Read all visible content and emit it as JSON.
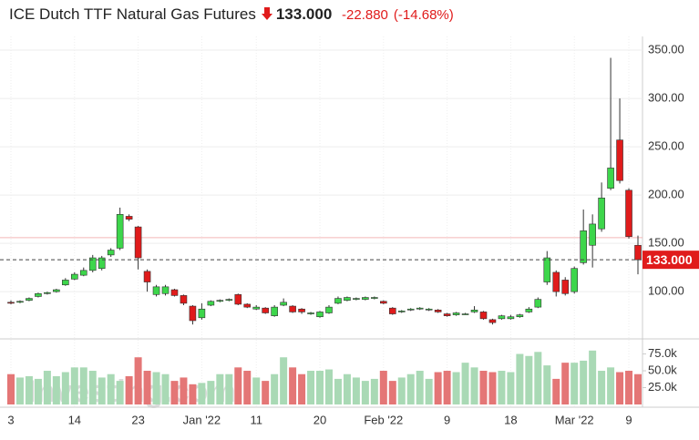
{
  "chart_data": {
    "type": "candlestick",
    "title": "ICE Dutch TTF Natural Gas Futures",
    "price_text": "133.000",
    "change_text": "-22.880",
    "change_pct_text": "(-14.68%)",
    "watermark": "Investing.com",
    "categories": [
      "3",
      null,
      null,
      null,
      null,
      null,
      null,
      "14",
      null,
      null,
      null,
      null,
      null,
      null,
      "23",
      null,
      null,
      null,
      null,
      null,
      null,
      "Jan '22",
      null,
      null,
      null,
      null,
      null,
      "11",
      null,
      null,
      null,
      null,
      null,
      null,
      "20",
      null,
      null,
      null,
      null,
      null,
      null,
      "Feb '22",
      null,
      null,
      null,
      null,
      null,
      null,
      "9",
      null,
      null,
      null,
      null,
      null,
      null,
      "18",
      null,
      null,
      null,
      null,
      null,
      null,
      "Mar '22",
      null,
      null,
      null,
      null,
      null,
      "9",
      null
    ],
    "open": [
      89,
      89,
      91,
      95,
      98,
      100,
      107,
      113,
      117,
      122,
      124,
      138,
      145,
      178,
      167,
      121,
      97,
      98,
      102,
      96,
      85,
      73,
      86,
      90,
      91,
      97,
      87,
      82,
      83,
      75,
      86,
      85,
      82,
      77,
      74,
      78,
      88,
      91,
      92,
      92,
      93,
      90,
      83,
      79,
      81,
      82,
      81,
      81,
      77,
      76,
      77,
      79,
      79,
      71,
      72,
      72,
      74,
      79,
      84,
      110,
      120,
      112,
      100,
      130,
      148,
      165,
      207,
      257,
      205,
      148
    ],
    "high": [
      91,
      91,
      94,
      99,
      100,
      103,
      114,
      120,
      125,
      138,
      137,
      145,
      187,
      180,
      168,
      123,
      107,
      107,
      103,
      97,
      86,
      88,
      91,
      92,
      93,
      98,
      88,
      86,
      84,
      86,
      93,
      86,
      83,
      79,
      80,
      86,
      95,
      95,
      94,
      95,
      95,
      91,
      84,
      81,
      83,
      84,
      83,
      82,
      78,
      79,
      78,
      85,
      80,
      72,
      76,
      76,
      77,
      84,
      94,
      142,
      122,
      115,
      126,
      185,
      180,
      213,
      342,
      300,
      207,
      158
    ],
    "low": [
      87,
      88,
      90,
      94,
      97,
      99,
      106,
      112,
      116,
      120,
      122,
      136,
      143,
      173,
      123,
      100,
      95,
      96,
      95,
      86,
      66,
      71,
      85,
      89,
      90,
      86,
      83,
      81,
      77,
      74,
      85,
      78,
      77,
      76,
      73,
      77,
      87,
      90,
      91,
      91,
      92,
      87,
      76,
      78,
      80,
      81,
      80,
      78,
      74,
      75,
      76,
      78,
      71,
      66,
      71,
      71,
      73,
      78,
      83,
      107,
      95,
      96,
      98,
      128,
      125,
      162,
      205,
      212,
      155,
      118
    ],
    "close": [
      88,
      90,
      93,
      98,
      99,
      102,
      112,
      118,
      122,
      135,
      135,
      143,
      180,
      175,
      135,
      110,
      105,
      105,
      96,
      88,
      70,
      82,
      90,
      91,
      92,
      87,
      84,
      84,
      78,
      84,
      89,
      79,
      79,
      78,
      79,
      84,
      93,
      94,
      93,
      94,
      94,
      88,
      77,
      80,
      82,
      83,
      82,
      79,
      75,
      78,
      77,
      81,
      72,
      68,
      75,
      74,
      76,
      82,
      92,
      135,
      100,
      98,
      124,
      163,
      170,
      197,
      228,
      215,
      157,
      133
    ],
    "volume": [
      45000,
      40000,
      42000,
      38000,
      50000,
      42000,
      48000,
      55000,
      55000,
      50000,
      40000,
      45000,
      35000,
      42000,
      70000,
      50000,
      48000,
      45000,
      35000,
      40000,
      30000,
      32000,
      35000,
      45000,
      45000,
      55000,
      50000,
      40000,
      35000,
      45000,
      70000,
      55000,
      45000,
      50000,
      50000,
      52000,
      38000,
      45000,
      40000,
      35000,
      38000,
      50000,
      35000,
      40000,
      45000,
      50000,
      38000,
      48000,
      50000,
      48000,
      62000,
      55000,
      50000,
      48000,
      50000,
      48000,
      75000,
      72000,
      78000,
      58000,
      38000,
      62000,
      62000,
      65000,
      80000,
      50000,
      55000,
      48000,
      50000,
      45000
    ],
    "ylim": [
      53,
      359
    ],
    "yticks": [
      {
        "value": 100,
        "label": "100.00"
      },
      {
        "value": 150,
        "label": "150.00"
      },
      {
        "value": 200,
        "label": "200.00"
      },
      {
        "value": 250,
        "label": "250.00"
      },
      {
        "value": 300,
        "label": "300.00"
      },
      {
        "value": 350,
        "label": "350.00"
      }
    ],
    "volume_ylim": [
      0,
      96000
    ],
    "volume_yticks": [
      {
        "value": 25000,
        "label": "25.0k"
      },
      {
        "value": 50000,
        "label": "50.0k"
      },
      {
        "value": 75000,
        "label": "75.0k"
      }
    ],
    "last_price": {
      "value": 133,
      "label": "133.000"
    },
    "reference_line": 155.88,
    "up_color": "#3dd64b",
    "down_color": "#e01b1b",
    "volume_up_color": "#a9d9b5",
    "volume_down_color": "#e47676",
    "grid": true
  }
}
